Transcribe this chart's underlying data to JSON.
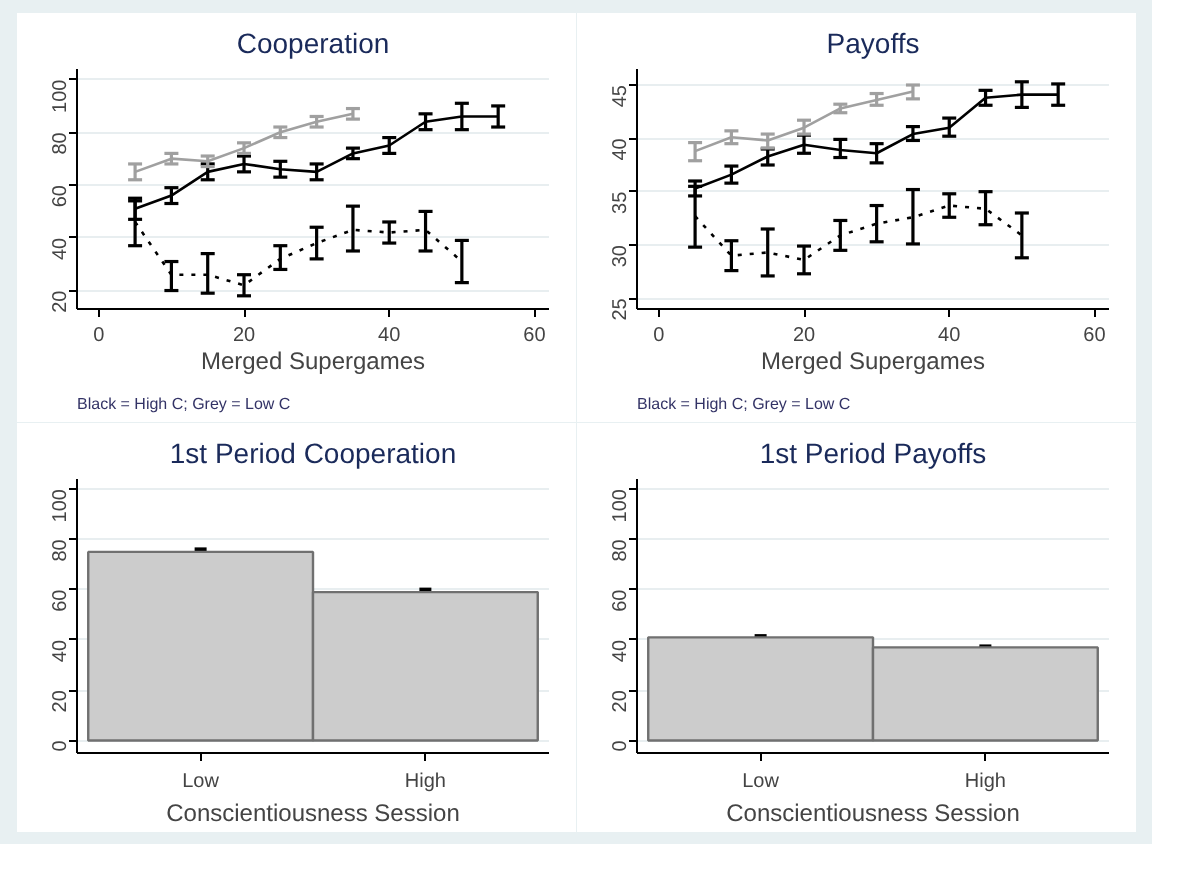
{
  "chart_data": [
    {
      "type": "line",
      "title": "Cooperation",
      "xlabel": "Merged Supergames",
      "annotations": [
        "Black = High C; Grey = Low C"
      ],
      "x": [
        5,
        10,
        15,
        20,
        25,
        30,
        35,
        40,
        45,
        50,
        55
      ],
      "xlim": [
        -3,
        62
      ],
      "xticks": [
        0,
        20,
        40,
        60
      ],
      "ylim": [
        13,
        104
      ],
      "yticks": [
        20,
        40,
        60,
        80,
        100
      ],
      "grid": "y",
      "marker": "none",
      "series": [
        {
          "color": "#000000",
          "line_style": "solid",
          "values": [
            51,
            56,
            65,
            68,
            66,
            65,
            72,
            75,
            84,
            86,
            86
          ],
          "errors": [
            [
              47,
              55
            ],
            [
              53,
              59
            ],
            [
              62,
              68
            ],
            [
              65,
              71
            ],
            [
              63,
              69
            ],
            [
              62,
              68
            ],
            [
              70,
              74
            ],
            [
              72,
              78
            ],
            [
              81,
              87
            ],
            [
              81,
              91
            ],
            [
              82,
              90
            ]
          ]
        },
        {
          "color": "#a0a0a0",
          "line_style": "solid",
          "values": [
            65,
            70,
            69,
            74,
            80,
            84,
            87,
            null,
            null,
            null,
            null
          ],
          "errors": [
            [
              62,
              68
            ],
            [
              68,
              72
            ],
            [
              67,
              71
            ],
            [
              72,
              76
            ],
            [
              78,
              82
            ],
            [
              82,
              86
            ],
            [
              85,
              89
            ],
            null,
            null,
            null,
            null
          ]
        },
        {
          "color": "#000000",
          "line_style": "dotted",
          "values": [
            46,
            26,
            26,
            22,
            32,
            38,
            43,
            42,
            43,
            31,
            null
          ],
          "errors": [
            [
              37,
              54
            ],
            [
              20,
              31
            ],
            [
              19,
              34
            ],
            [
              18,
              26
            ],
            [
              28,
              37
            ],
            [
              32,
              44
            ],
            [
              35,
              52
            ],
            [
              38,
              46
            ],
            [
              35,
              50
            ],
            [
              23,
              39
            ],
            null
          ]
        }
      ]
    },
    {
      "type": "line",
      "title": "Payoffs",
      "xlabel": "Merged Supergames",
      "annotations": [
        "Black = High C; Grey = Low C"
      ],
      "x": [
        5,
        10,
        15,
        20,
        25,
        30,
        35,
        40,
        45,
        50,
        55
      ],
      "xlim": [
        -3,
        62
      ],
      "xticks": [
        0,
        20,
        40,
        60
      ],
      "ylim": [
        24,
        46.5
      ],
      "yticks": [
        25,
        30,
        35,
        40,
        45
      ],
      "grid": "y",
      "marker": "none",
      "series": [
        {
          "color": "#000000",
          "line_style": "solid",
          "values": [
            35.3,
            36.6,
            38.3,
            39.4,
            38.9,
            38.6,
            40.4,
            41,
            43.8,
            44.1,
            44.1
          ],
          "errors": [
            [
              34.6,
              36
            ],
            [
              35.8,
              37.4
            ],
            [
              37.5,
              39
            ],
            [
              38.6,
              40.3
            ],
            [
              38.2,
              39.9
            ],
            [
              37.7,
              39.5
            ],
            [
              39.8,
              41.1
            ],
            [
              40.2,
              41.9
            ],
            [
              43.1,
              44.5
            ],
            [
              42.9,
              45.3
            ],
            [
              43.1,
              45.1
            ]
          ]
        },
        {
          "color": "#a0a0a0",
          "line_style": "solid",
          "values": [
            38.8,
            40.1,
            39.8,
            41,
            42.8,
            43.6,
            44.4,
            null,
            null,
            null,
            null
          ],
          "errors": [
            [
              37.9,
              39.6
            ],
            [
              39.5,
              40.7
            ],
            [
              39.1,
              40.4
            ],
            [
              40.4,
              41.7
            ],
            [
              42.4,
              43.2
            ],
            [
              43.1,
              44.2
            ],
            [
              43.7,
              45
            ],
            null,
            null,
            null,
            null
          ]
        },
        {
          "color": "#000000",
          "line_style": "dotted",
          "values": [
            32.7,
            29,
            29.3,
            28.6,
            30.9,
            32,
            32.6,
            33.7,
            33.4,
            30.9,
            null
          ],
          "errors": [
            [
              29.8,
              35.5
            ],
            [
              27.6,
              30.4
            ],
            [
              27.1,
              31.5
            ],
            [
              27.3,
              29.9
            ],
            [
              29.5,
              32.3
            ],
            [
              30.3,
              33.7
            ],
            [
              30.1,
              35.2
            ],
            [
              32.6,
              34.8
            ],
            [
              31.9,
              35
            ],
            [
              28.8,
              33
            ],
            null
          ]
        }
      ]
    },
    {
      "type": "bar",
      "title": "1st Period Cooperation",
      "xlabel": "Conscientiousness Session",
      "categories": [
        "Low",
        "High"
      ],
      "values": [
        75,
        59
      ],
      "errors": [
        [
          74,
          76
        ],
        [
          58,
          60
        ]
      ],
      "color": "#cccccc",
      "ylim": [
        -5,
        104
      ],
      "yticks": [
        0,
        20,
        40,
        60,
        80,
        100
      ],
      "grid": "y"
    },
    {
      "type": "bar",
      "title": "1st Period Payoffs",
      "xlabel": "Conscientiousness Session",
      "categories": [
        "Low",
        "High"
      ],
      "values": [
        41,
        37
      ],
      "errors": [
        [
          40.5,
          41.5
        ],
        [
          36.6,
          37.4
        ]
      ],
      "color": "#cccccc",
      "ylim": [
        -5,
        104
      ],
      "yticks": [
        0,
        20,
        40,
        60,
        80,
        100
      ],
      "grid": "y"
    }
  ]
}
